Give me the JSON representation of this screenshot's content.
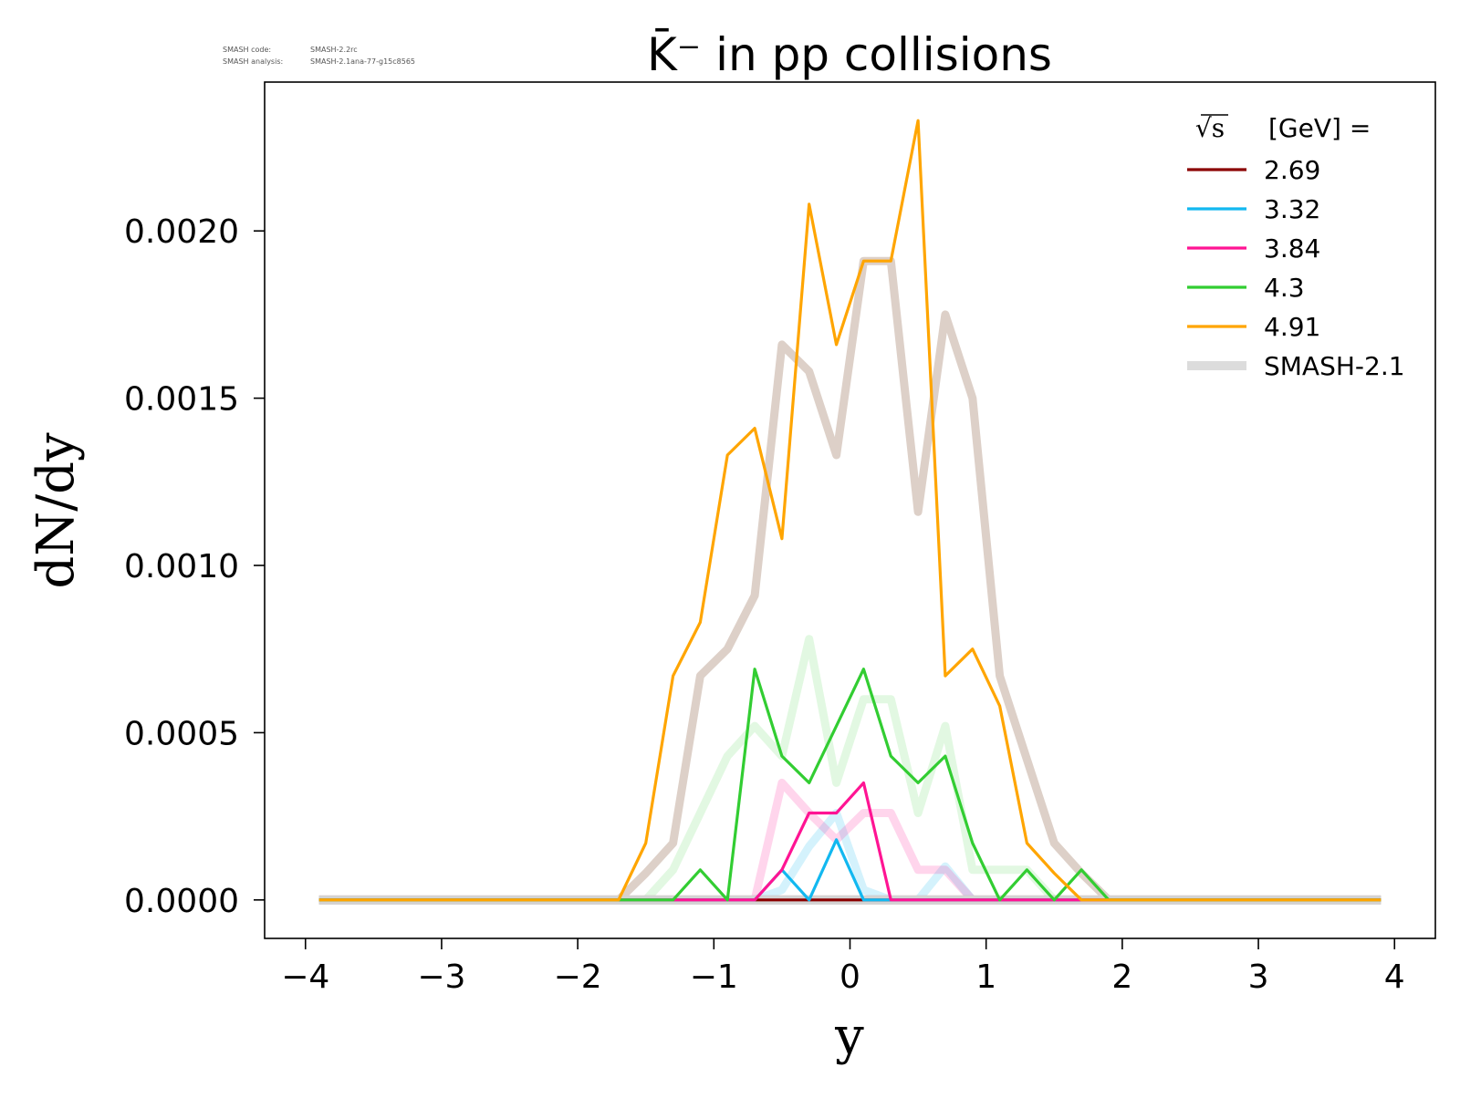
{
  "meta": {
    "line1_label": "SMASH code:",
    "line1_value": "SMASH-2.2rc",
    "line2_label": "SMASH analysis:",
    "line2_value": "SMASH-2.1ana-77-g15c8565"
  },
  "chart_data": {
    "type": "line",
    "title": "K̄⁻ in pp collisions",
    "xlabel": "y",
    "ylabel": "dN/dy",
    "xlim": [
      -4.3,
      4.3
    ],
    "ylim": [
      -0.000115,
      0.002445
    ],
    "xticks": [
      -4,
      -3,
      -2,
      -1,
      0,
      1,
      2,
      3,
      4
    ],
    "xtick_labels": [
      "−4",
      "−3",
      "−2",
      "−1",
      "0",
      "1",
      "2",
      "3",
      "4"
    ],
    "yticks": [
      0.0,
      0.0005,
      0.001,
      0.0015,
      0.002
    ],
    "ytick_labels": [
      "0.0000",
      "0.0005",
      "0.0010",
      "0.0015",
      "0.0020"
    ],
    "grid": false,
    "legend": {
      "placement": "top-right",
      "title_prefix": "√s",
      "title_suffix": "[GeV] ="
    },
    "x": [
      -3.9,
      -1.7,
      -1.5,
      -1.3,
      -1.1,
      -0.9,
      -0.7,
      -0.5,
      -0.3,
      -0.1,
      0.1,
      0.3,
      0.5,
      0.7,
      0.9,
      1.1,
      1.3,
      1.5,
      1.7,
      1.9,
      3.9
    ],
    "series": [
      {
        "name": "2.69",
        "color": "#8b0000",
        "values": [
          0,
          0,
          0,
          0,
          0,
          0,
          0,
          0,
          0,
          0,
          0,
          0,
          0,
          0,
          0,
          0,
          0,
          0,
          0,
          0,
          0
        ],
        "smash21_reference": [
          0,
          0,
          0,
          0,
          0,
          0,
          0,
          0,
          0,
          0,
          0,
          0,
          0,
          0,
          0,
          0,
          0,
          0,
          0,
          0,
          0
        ]
      },
      {
        "name": "3.32",
        "color": "#12b8f0",
        "values": [
          0,
          0,
          0,
          0,
          0,
          0,
          0,
          9e-05,
          0,
          0.00018,
          0,
          0,
          0,
          0,
          0,
          0,
          0,
          0,
          0,
          0,
          0
        ],
        "smash21_reference": [
          0,
          0,
          0,
          0,
          0,
          0,
          0,
          3e-05,
          0.00016,
          0.00026,
          3e-05,
          0,
          0,
          0.0001,
          0,
          0,
          0,
          0,
          0,
          0,
          0
        ]
      },
      {
        "name": "3.84",
        "color": "#ff1493",
        "values": [
          0,
          0,
          0,
          0,
          0,
          0,
          0,
          9e-05,
          0.00026,
          0.00026,
          0.00035,
          0,
          0,
          0,
          0,
          0,
          0,
          0,
          0,
          0,
          0
        ],
        "smash21_reference": [
          0,
          0,
          0,
          0,
          0,
          0,
          0,
          0.00035,
          0.00026,
          0.00018,
          0.00026,
          0.00026,
          9e-05,
          9e-05,
          0,
          0,
          0,
          0,
          0,
          0,
          0
        ]
      },
      {
        "name": "4.3",
        "color": "#32cd32",
        "values": [
          0,
          0,
          0,
          0,
          9e-05,
          0,
          0.00069,
          0.00043,
          0.00035,
          0.00052,
          0.00069,
          0.00043,
          0.00035,
          0.00043,
          0.00017,
          0,
          9e-05,
          0,
          9e-05,
          0,
          0
        ],
        "smash21_reference": [
          0,
          0,
          0,
          9e-05,
          0.00026,
          0.00043,
          0.00052,
          0.00043,
          0.00078,
          0.00035,
          0.0006,
          0.0006,
          0.00026,
          0.00052,
          9e-05,
          9e-05,
          9e-05,
          0,
          0,
          0,
          0
        ]
      },
      {
        "name": "4.91",
        "color": "#ffa500",
        "values": [
          0,
          0,
          0.00017,
          0.00067,
          0.00083,
          0.00133,
          0.00141,
          0.00108,
          0.00208,
          0.00166,
          0.00191,
          0.00191,
          0.00233,
          0.00067,
          0.00075,
          0.00058,
          0.00017,
          8e-05,
          0,
          0,
          0
        ],
        "smash21_reference": [
          0,
          0,
          8e-05,
          0.00017,
          0.00067,
          0.00075,
          0.00091,
          0.00166,
          0.00158,
          0.00133,
          0.00191,
          0.00191,
          0.00116,
          0.00175,
          0.0015,
          0.00067,
          0.00042,
          0.00017,
          8e-05,
          0,
          0
        ]
      }
    ],
    "reference_legend": {
      "name": "SMASH-2.1",
      "color": "#dcdcdc"
    }
  }
}
